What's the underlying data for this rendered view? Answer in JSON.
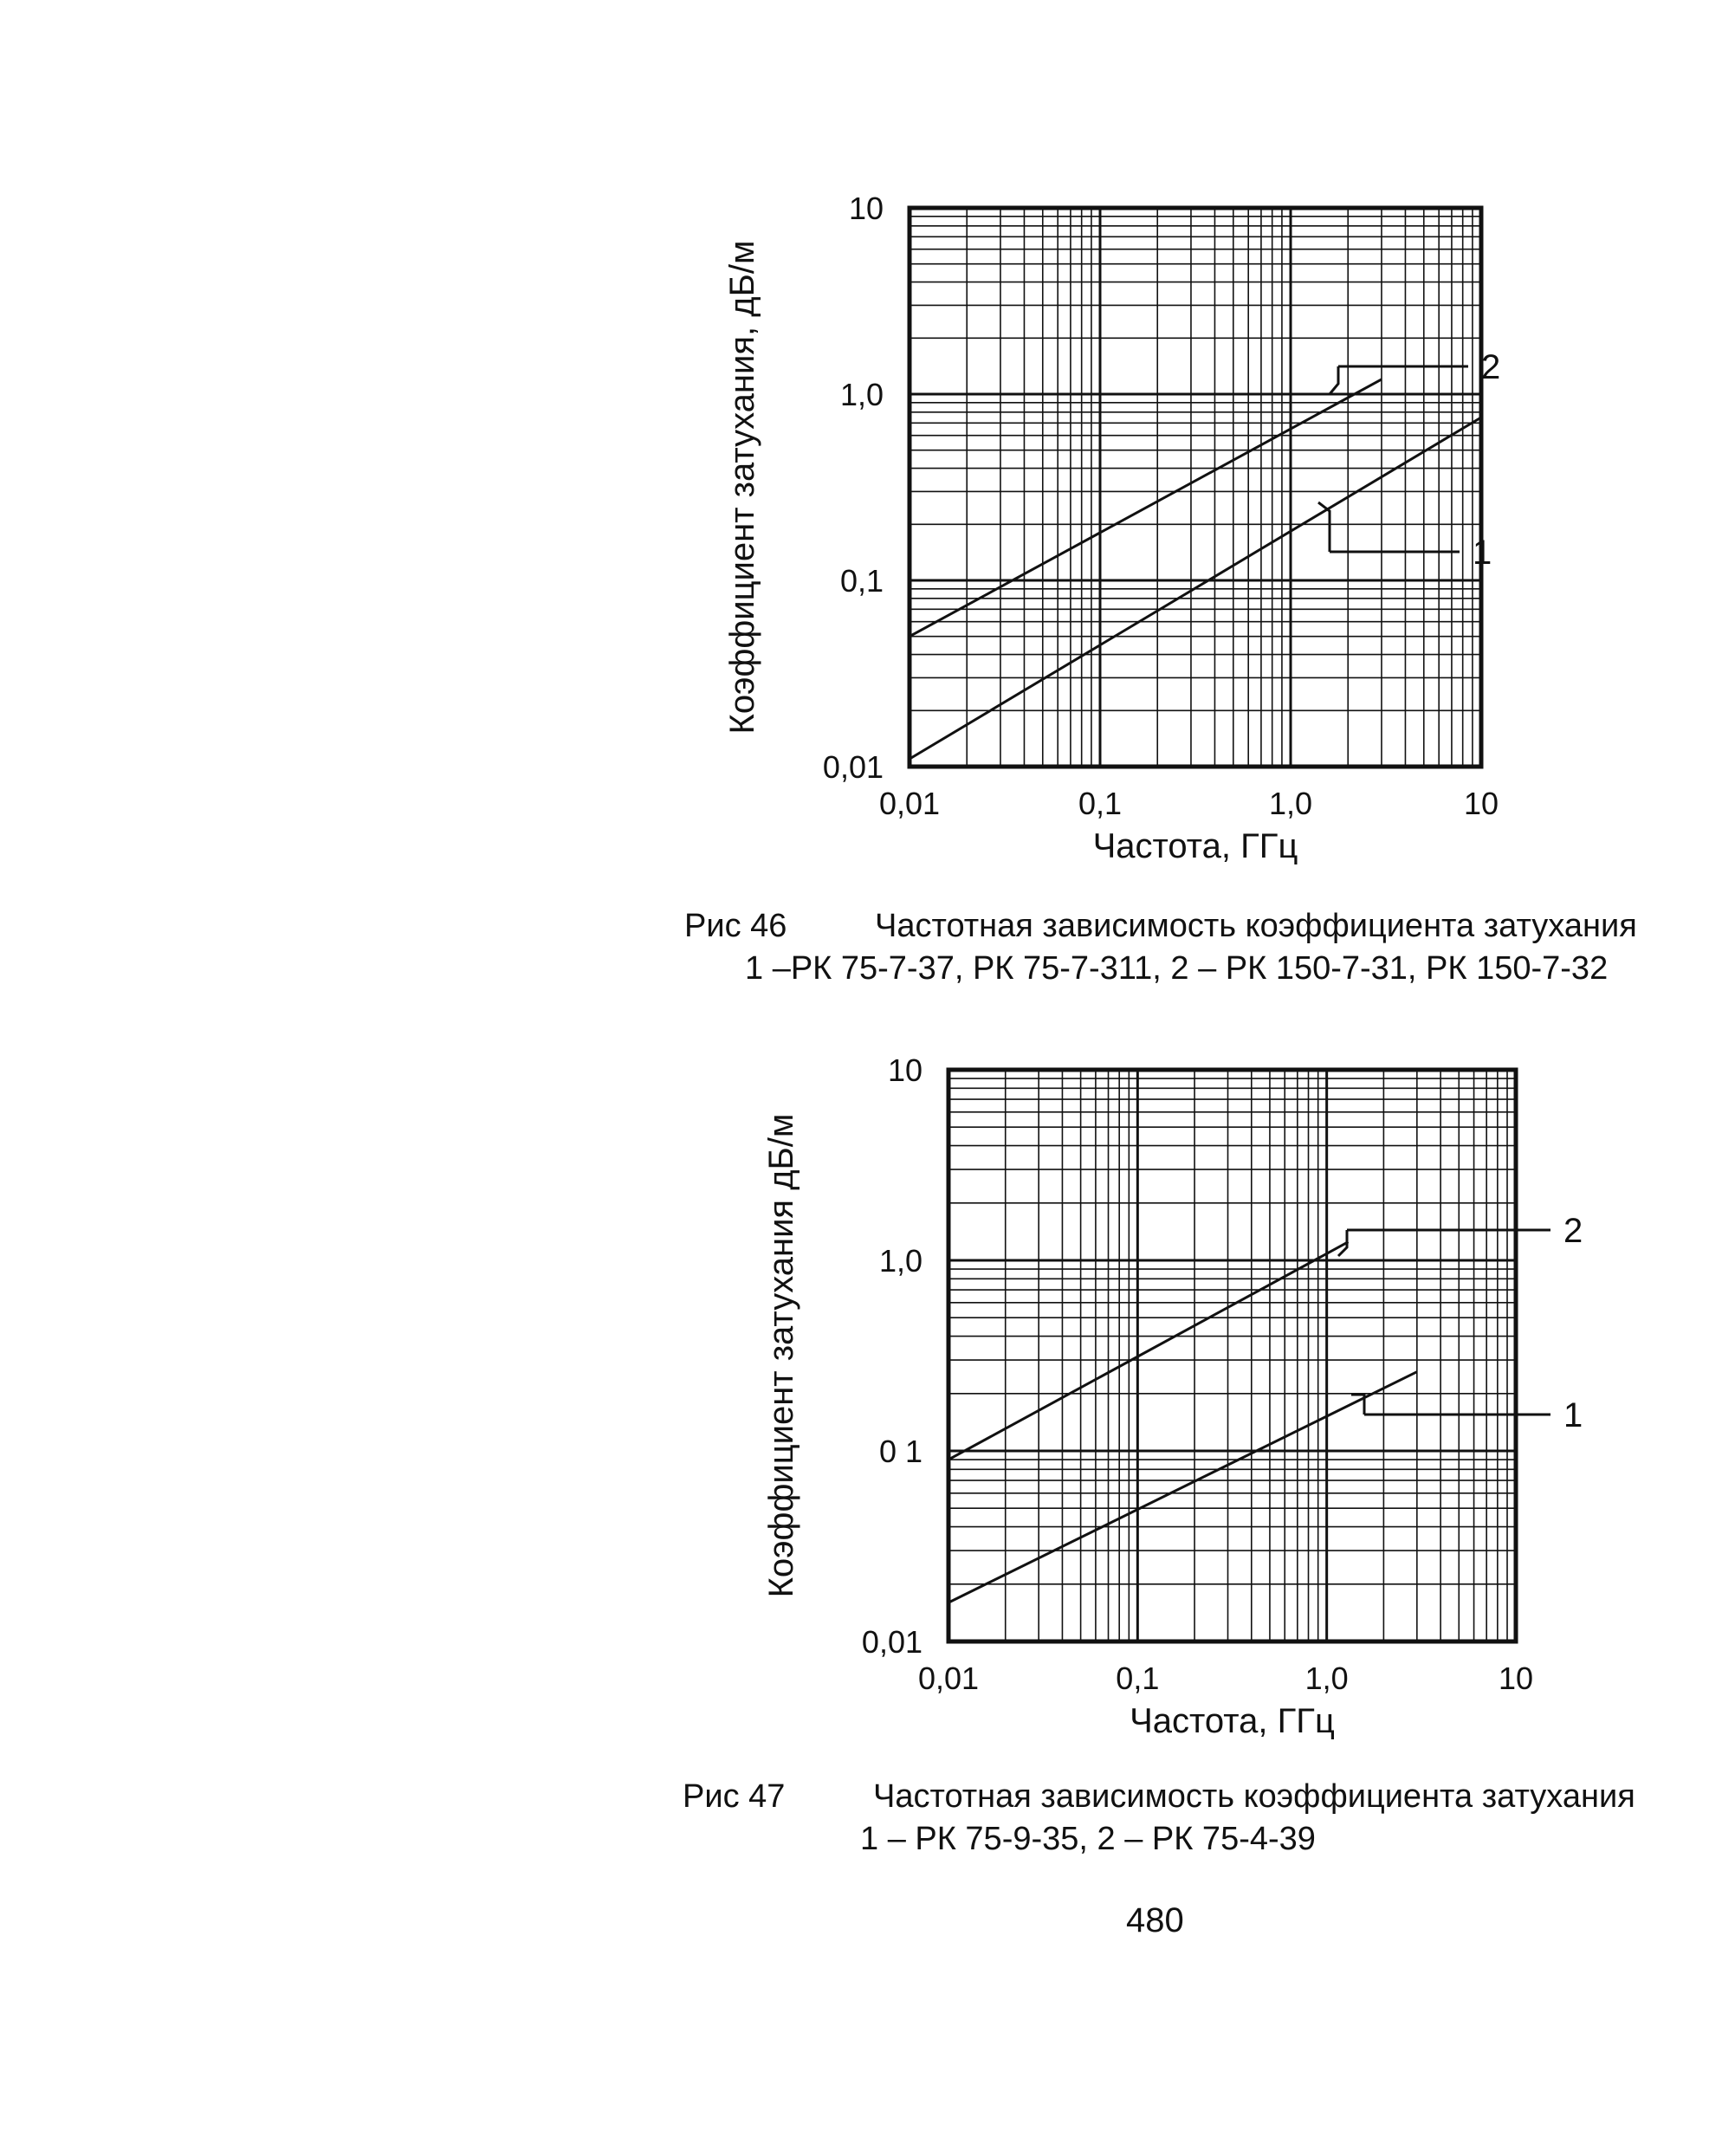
{
  "figures": [
    {
      "id": "46",
      "caption": {
        "number": "Рис  46",
        "title": "Частотная зависимость коэффициента затухания",
        "legend": "1 –РК 75-7-37, РК 75-7-311,       2 – РК 150-7-31, РК 150-7-32"
      }
    },
    {
      "id": "47",
      "caption": {
        "number": "Рис  47",
        "title": "Частотная зависимость коэффициента затухания",
        "legend": "1 – РК 75-9-35,      2 – РК 75-4-39"
      }
    }
  ],
  "page_number": "480",
  "colors": {
    "ink": "#111111",
    "paper": "#ffffff"
  },
  "chart_data": [
    {
      "type": "line",
      "x_scale": "log",
      "y_scale": "log",
      "xlim": [
        0.01,
        10
      ],
      "ylim": [
        0.01,
        10
      ],
      "grid": true,
      "title": "",
      "xlabel": "Частота, ГГц",
      "ylabel": "Коэффициент затухания, дБ/м",
      "x_tick_labels": [
        "0,01",
        "0,1",
        "1,0",
        "10"
      ],
      "y_tick_labels": [
        "0,01",
        "0,1",
        "1,0",
        "10"
      ],
      "series": [
        {
          "name": "1",
          "x": [
            0.01,
            10
          ],
          "y": [
            0.011,
            0.75
          ]
        },
        {
          "name": "2",
          "x": [
            0.01,
            3
          ],
          "y": [
            0.05,
            1.2
          ]
        }
      ]
    },
    {
      "type": "line",
      "x_scale": "log",
      "y_scale": "log",
      "xlim": [
        0.01,
        10
      ],
      "ylim": [
        0.01,
        10
      ],
      "grid": true,
      "title": "",
      "xlabel": "Частота, ГГц",
      "ylabel": "Коэффициент затухания  дБ/м",
      "x_tick_labels": [
        "0,01",
        "0,1",
        "1,0",
        "10"
      ],
      "y_tick_labels": [
        "0,01",
        "0 1",
        "1,0",
        "10"
      ],
      "series": [
        {
          "name": "1",
          "x": [
            0.01,
            3
          ],
          "y": [
            0.016,
            0.26
          ]
        },
        {
          "name": "2",
          "x": [
            0.01,
            1.3
          ],
          "y": [
            0.09,
            1.25
          ]
        }
      ]
    }
  ]
}
